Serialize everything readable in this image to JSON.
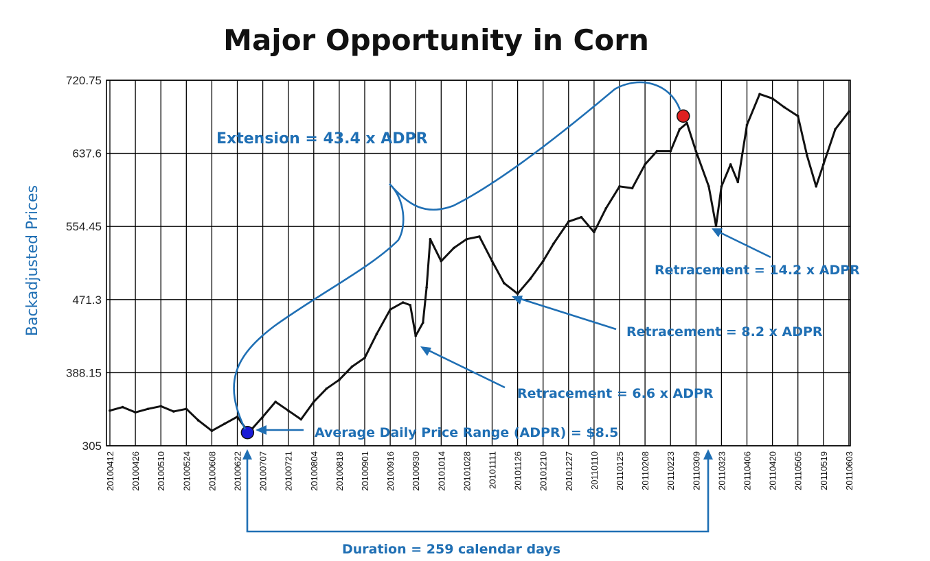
{
  "chart_data": {
    "type": "line",
    "title": "Major Opportunity in Corn",
    "ylabel": "Backadjusted Prices",
    "xlabel": "",
    "yticks": [
      "720.75",
      "637.6",
      "554.45",
      "471.3",
      "388.15",
      "305"
    ],
    "ylim": [
      305,
      720.75
    ],
    "xticks": [
      "20100412",
      "20100426",
      "20100510",
      "20100524",
      "20100608",
      "20100622",
      "20100707",
      "20100721",
      "20100804",
      "20100818",
      "20100901",
      "20100916",
      "20100930",
      "20101014",
      "20101028",
      "20101111",
      "20101126",
      "20101210",
      "20101227",
      "20110110",
      "20110125",
      "20110208",
      "20110223",
      "20110309",
      "20110323",
      "20110406",
      "20110420",
      "20110505",
      "20110519",
      "20110603"
    ],
    "grid": true,
    "series": [
      {
        "values": [
          [
            "20100412",
            345
          ],
          [
            "20100419",
            349
          ],
          [
            "20100426",
            343
          ],
          [
            "20100503",
            347
          ],
          [
            "20100510",
            350
          ],
          [
            "20100517",
            344
          ],
          [
            "20100524",
            347
          ],
          [
            "20100531",
            334
          ],
          [
            "20100608",
            322
          ],
          [
            "20100615",
            330
          ],
          [
            "20100622",
            338
          ],
          [
            "20100628",
            322
          ],
          [
            "20100701",
            325
          ],
          [
            "20100707",
            338
          ],
          [
            "20100714",
            355
          ],
          [
            "20100721",
            345
          ],
          [
            "20100728",
            335
          ],
          [
            "20100804",
            355
          ],
          [
            "20100811",
            370
          ],
          [
            "20100818",
            380
          ],
          [
            "20100825",
            395
          ],
          [
            "20100901",
            405
          ],
          [
            "20100908",
            432
          ],
          [
            "20100916",
            460
          ],
          [
            "20100923",
            468
          ],
          [
            "20100927",
            465
          ],
          [
            "20100930",
            430
          ],
          [
            "20101004",
            445
          ],
          [
            "20101006",
            485
          ],
          [
            "20101008",
            540
          ],
          [
            "20101014",
            515
          ],
          [
            "20101021",
            530
          ],
          [
            "20101028",
            540
          ],
          [
            "20101104",
            543
          ],
          [
            "20101111",
            515
          ],
          [
            "20101118",
            490
          ],
          [
            "20101126",
            478
          ],
          [
            "20101203",
            495
          ],
          [
            "20101210",
            515
          ],
          [
            "20101217",
            535
          ],
          [
            "20101227",
            560
          ],
          [
            "20110103",
            565
          ],
          [
            "20110110",
            548
          ],
          [
            "20110117",
            575
          ],
          [
            "20110125",
            600
          ],
          [
            "20110201",
            598
          ],
          [
            "20110208",
            625
          ],
          [
            "20110215",
            640
          ],
          [
            "20110223",
            640
          ],
          [
            "20110228",
            665
          ],
          [
            "20110304",
            672
          ],
          [
            "20110309",
            640
          ],
          [
            "20110316",
            600
          ],
          [
            "20110320",
            555
          ],
          [
            "20110323",
            600
          ],
          [
            "20110328",
            625
          ],
          [
            "20110401",
            605
          ],
          [
            "20110406",
            670
          ],
          [
            "20110413",
            705
          ],
          [
            "20110420",
            700
          ],
          [
            "20110427",
            690
          ],
          [
            "20110505",
            680
          ],
          [
            "20110510",
            635
          ],
          [
            "20110515",
            600
          ],
          [
            "20110519",
            625
          ],
          [
            "20110526",
            665
          ],
          [
            "20110603",
            685
          ]
        ]
      }
    ],
    "markers": [
      {
        "date": "20100628",
        "value": 320,
        "color": "#1a1ad6"
      },
      {
        "date": "20110302",
        "value": 680,
        "color": "#e02020"
      }
    ]
  },
  "annotations": {
    "extension": "Extension  = 43.4 x ADPR",
    "adpr": "Average Daily Price Range (ADPR) = $8.5",
    "retracement_1": "Retracement = 6.6 x ADPR",
    "retracement_2": "Retracement = 8.2 x ADPR",
    "retracement_3": "Retracement = 14.2 x ADPR",
    "duration": "Duration = 259 calendar days"
  },
  "colors": {
    "annotation": "#1f6fb4",
    "price_line": "#111111",
    "grid": "#000000",
    "start_marker": "#1a1ad6",
    "end_marker": "#e02020"
  }
}
